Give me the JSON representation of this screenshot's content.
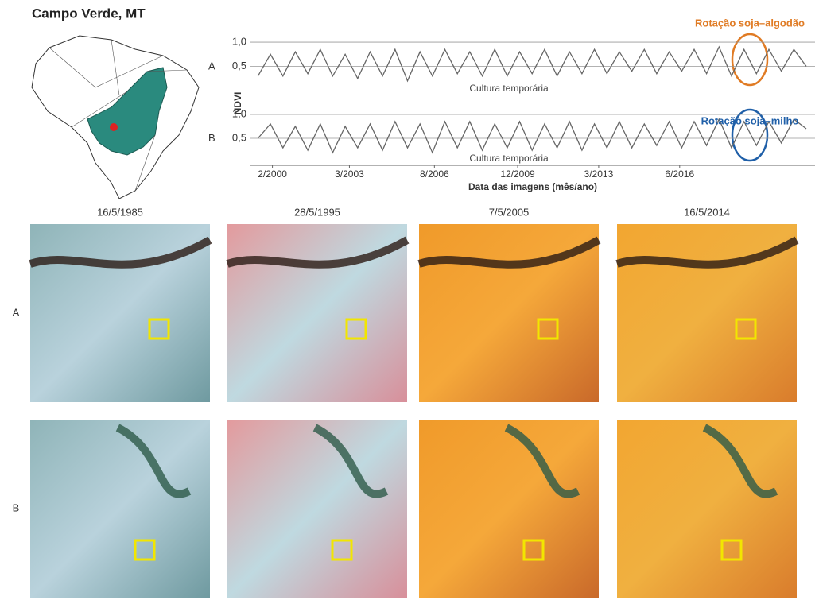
{
  "figure": {
    "title": "Campo Verde, MT",
    "image_dates": [
      "16/5/1985",
      "28/5/1995",
      "7/5/2005",
      "16/5/2014"
    ],
    "image_rows": [
      "A",
      "B"
    ]
  },
  "chart_data": [
    {
      "type": "line",
      "panel": "A",
      "ylabel": "NDVI",
      "annotation": "Cultura temporária",
      "highlight": "Rotação soja–algodão",
      "highlight_color": "#e07b24",
      "color": "#666666",
      "xlim": [
        1999.2,
        2021.85
      ],
      "ylim": [
        0,
        1.05
      ],
      "yticks": [
        {
          "value": 0.5,
          "label": "0,5"
        },
        {
          "value": 1,
          "label": "1,0"
        }
      ],
      "grid": true,
      "x": [
        1999.5,
        2000,
        2000.5,
        2001,
        2001.5,
        2002,
        2002.5,
        2003,
        2003.5,
        2004,
        2004.5,
        2005,
        2005.5,
        2006,
        2006.5,
        2007,
        2007.5,
        2008,
        2008.5,
        2009,
        2009.5,
        2010,
        2010.5,
        2011,
        2011.5,
        2012,
        2012.5,
        2013,
        2013.5,
        2014,
        2014.5,
        2015,
        2015.5,
        2016,
        2016.5,
        2017,
        2017.5,
        2018,
        2018.5,
        2019,
        2019.5,
        2020,
        2020.5,
        2021,
        2021.5
      ],
      "values": [
        0.3,
        0.75,
        0.3,
        0.8,
        0.35,
        0.85,
        0.3,
        0.75,
        0.25,
        0.8,
        0.3,
        0.85,
        0.2,
        0.8,
        0.3,
        0.85,
        0.35,
        0.8,
        0.3,
        0.85,
        0.3,
        0.8,
        0.35,
        0.85,
        0.3,
        0.8,
        0.35,
        0.85,
        0.35,
        0.8,
        0.4,
        0.85,
        0.35,
        0.8,
        0.4,
        0.85,
        0.35,
        0.9,
        0.3,
        0.85,
        0.35,
        0.85,
        0.4,
        0.85,
        0.5
      ]
    },
    {
      "type": "line",
      "panel": "B",
      "xlabel": "Data das imagens (mês/ano)",
      "annotation": "Cultura temporária",
      "highlight": "Rotação soja–milho",
      "highlight_color": "#1f5fa8",
      "color": "#666666",
      "xlim": [
        1999.2,
        2021.85
      ],
      "ylim": [
        0,
        1.05
      ],
      "yticks": [
        {
          "value": 0.5,
          "label": "0,5"
        },
        {
          "value": 1,
          "label": "1,0"
        }
      ],
      "grid": true,
      "xticks": [
        {
          "value": 2000.08,
          "label": "2/2000"
        },
        {
          "value": 2003.17,
          "label": "3/2003"
        },
        {
          "value": 2006.58,
          "label": "8/2006"
        },
        {
          "value": 2009.92,
          "label": "12/2009"
        },
        {
          "value": 2013.17,
          "label": "3/2013"
        },
        {
          "value": 2016.42,
          "label": "6/2016"
        }
      ],
      "x": [
        1999.5,
        2000,
        2000.5,
        2001,
        2001.5,
        2002,
        2002.5,
        2003,
        2003.5,
        2004,
        2004.5,
        2005,
        2005.5,
        2006,
        2006.5,
        2007,
        2007.5,
        2008,
        2008.5,
        2009,
        2009.5,
        2010,
        2010.5,
        2011,
        2011.5,
        2012,
        2012.5,
        2013,
        2013.5,
        2014,
        2014.5,
        2015,
        2015.5,
        2016,
        2016.5,
        2017,
        2017.5,
        2018,
        2018.5,
        2019,
        2019.5,
        2020,
        2020.5,
        2021,
        2021.5
      ],
      "values": [
        0.5,
        0.8,
        0.3,
        0.75,
        0.25,
        0.8,
        0.2,
        0.75,
        0.3,
        0.8,
        0.25,
        0.85,
        0.3,
        0.8,
        0.2,
        0.85,
        0.3,
        0.85,
        0.25,
        0.8,
        0.3,
        0.85,
        0.25,
        0.8,
        0.3,
        0.85,
        0.25,
        0.8,
        0.3,
        0.85,
        0.3,
        0.8,
        0.35,
        0.85,
        0.3,
        0.85,
        0.35,
        0.9,
        0.3,
        0.85,
        0.35,
        0.85,
        0.4,
        0.9,
        0.7
      ]
    }
  ]
}
